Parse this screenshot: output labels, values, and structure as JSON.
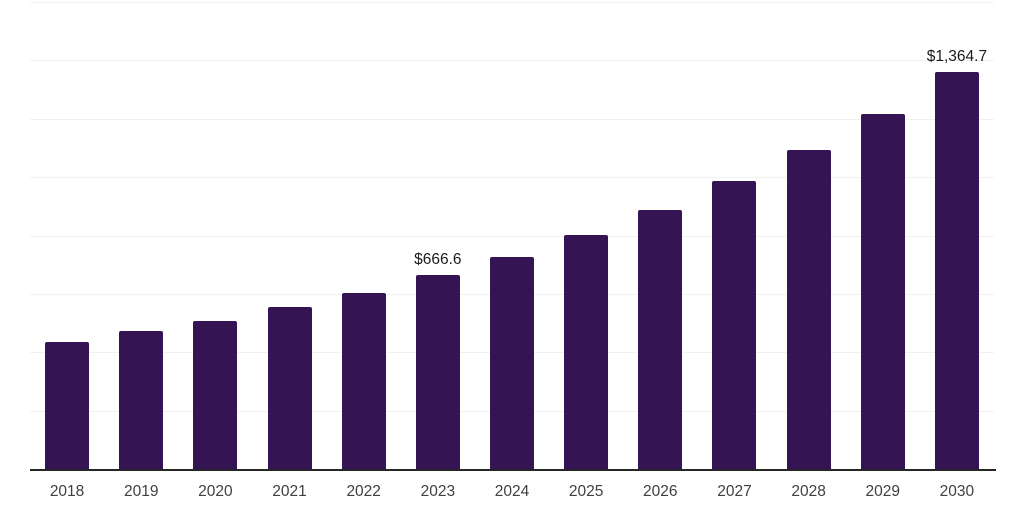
{
  "chart_data": {
    "type": "bar",
    "title": "",
    "xlabel": "",
    "ylabel": "",
    "categories": [
      "2018",
      "2019",
      "2020",
      "2021",
      "2022",
      "2023",
      "2024",
      "2025",
      "2026",
      "2027",
      "2028",
      "2029",
      "2030"
    ],
    "values": [
      440,
      475,
      510,
      560,
      608,
      666.6,
      730,
      805,
      890,
      990,
      1095,
      1220,
      1364.7
    ],
    "data_labels": [
      null,
      null,
      null,
      null,
      null,
      "$666.6",
      null,
      null,
      null,
      null,
      null,
      null,
      "$1,364.7"
    ],
    "ylim": [
      0,
      1600
    ],
    "grid_step": 200,
    "grid": "horizontal-only",
    "legend_position": "none",
    "currency_unit": "$",
    "colors": {
      "bar": "#341452",
      "gridline": "#f1f1f1",
      "axis_line": "#262626",
      "tick_label": "#404040",
      "data_label": "#1b1b1b",
      "background": "#ffffff"
    }
  }
}
